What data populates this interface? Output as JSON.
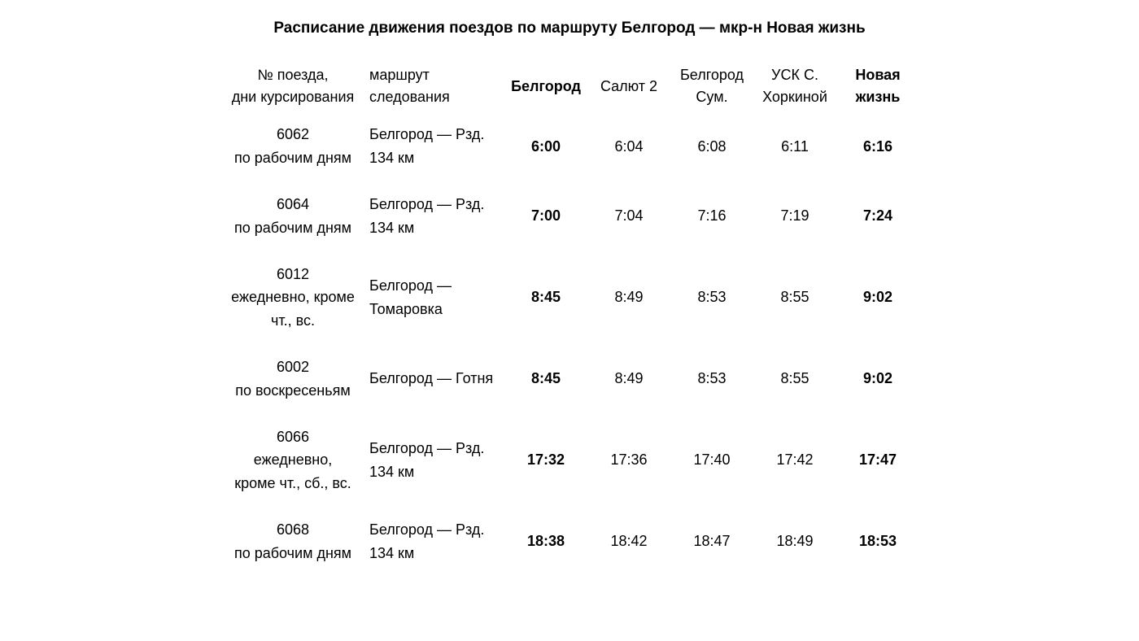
{
  "title": "Расписание движения поездов по маршруту Белгород — мкр-н Новая жизнь",
  "headers": {
    "train": "№ поезда,\nдни курсирования",
    "route": "маршрут следования",
    "stops": [
      "Белгород",
      "Салют 2",
      "Белгород Сум.",
      "УСК С. Хоркиной",
      "Новая жизнь"
    ]
  },
  "rows": [
    {
      "train": "6062\nпо рабочим дням",
      "route": "Белгород — Рзд. 134 км",
      "times": [
        "6:00",
        "6:04",
        "6:08",
        "6:11",
        "6:16"
      ]
    },
    {
      "train": "6064\nпо рабочим дням",
      "route": "Белгород — Рзд. 134 км",
      "times": [
        "7:00",
        "7:04",
        "7:16",
        "7:19",
        "7:24"
      ]
    },
    {
      "train": "6012\nежедневно, кроме чт., вс.",
      "route": "Белгород — Томаровка",
      "times": [
        "8:45",
        "8:49",
        "8:53",
        "8:55",
        "9:02"
      ]
    },
    {
      "train": "6002\nпо воскресеньям",
      "route": "Белгород — Готня",
      "times": [
        "8:45",
        "8:49",
        "8:53",
        "8:55",
        "9:02"
      ]
    },
    {
      "train": "6066\nежедневно,\nкроме чт., сб., вс.",
      "route": "Белгород — Рзд. 134 км",
      "times": [
        "17:32",
        "17:36",
        "17:40",
        "17:42",
        "17:47"
      ]
    },
    {
      "train": "6068\nпо рабочим дням",
      "route": "Белгород — Рзд. 134 км",
      "times": [
        "18:38",
        "18:42",
        "18:47",
        "18:49",
        "18:53"
      ]
    }
  ],
  "style": {
    "bold_stop_indexes": [
      0,
      4
    ],
    "font_family": "Arial",
    "title_fontsize": 19,
    "cell_fontsize": 18,
    "text_color": "#000000",
    "background_color": "#ffffff",
    "col_widths": {
      "train": 180,
      "route": 170,
      "time": 102
    }
  }
}
